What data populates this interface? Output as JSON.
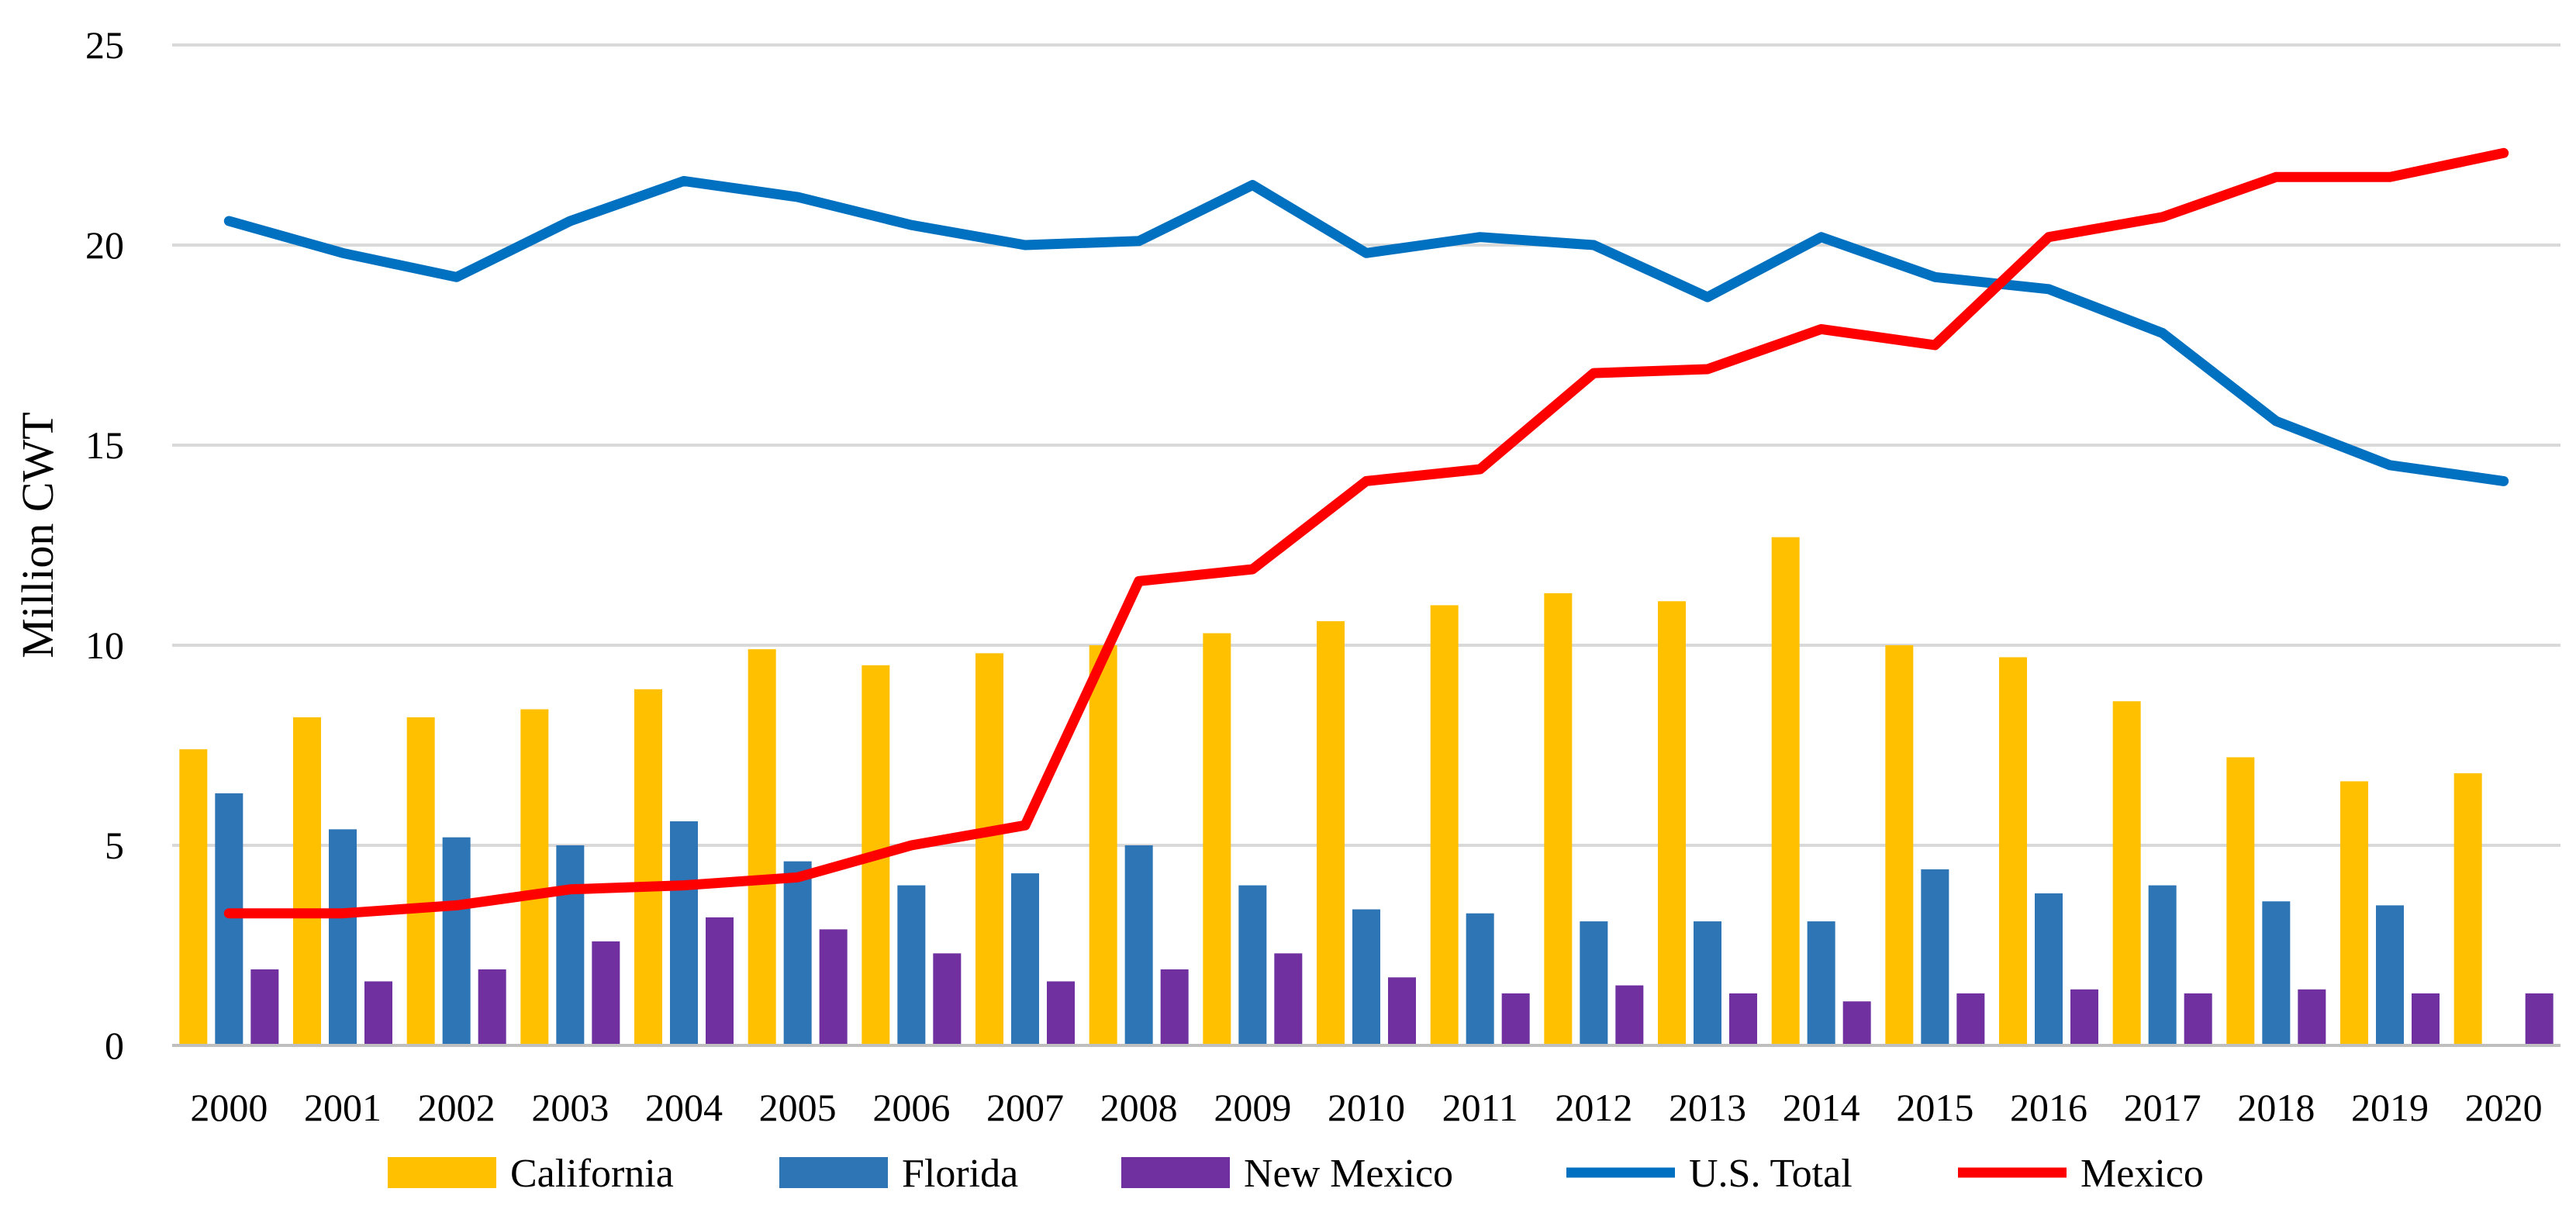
{
  "chart_data": {
    "type": "bar",
    "title": "",
    "xlabel": "",
    "ylabel": "Million CWT",
    "ylim": [
      0,
      25
    ],
    "yticks": [
      0,
      5,
      10,
      15,
      20,
      25
    ],
    "grid": true,
    "legend_position": "bottom",
    "categories": [
      "2000",
      "2001",
      "2002",
      "2003",
      "2004",
      "2005",
      "2006",
      "2007",
      "2008",
      "2009",
      "2010",
      "2011",
      "2012",
      "2013",
      "2014",
      "2015",
      "2016",
      "2017",
      "2018",
      "2019",
      "2020"
    ],
    "series": [
      {
        "name": "California",
        "kind": "bar",
        "color": "#FFC000",
        "values": [
          7.4,
          8.2,
          8.2,
          8.4,
          8.9,
          9.9,
          9.5,
          9.8,
          10.0,
          10.3,
          10.6,
          11.0,
          11.3,
          11.1,
          12.7,
          10.0,
          9.7,
          8.6,
          7.2,
          6.6,
          6.8
        ]
      },
      {
        "name": "Florida",
        "kind": "bar",
        "color": "#2E75B6",
        "values": [
          6.3,
          5.4,
          5.2,
          5.0,
          5.6,
          4.6,
          4.0,
          4.3,
          5.0,
          4.0,
          3.4,
          3.3,
          3.1,
          3.1,
          3.1,
          4.4,
          3.8,
          4.0,
          3.6,
          3.5,
          0
        ]
      },
      {
        "name": "New Mexico",
        "kind": "bar",
        "color": "#7030A0",
        "values": [
          1.9,
          1.6,
          1.9,
          2.6,
          3.2,
          2.9,
          2.3,
          1.6,
          1.9,
          2.3,
          1.7,
          1.3,
          1.5,
          1.3,
          1.1,
          1.3,
          1.4,
          1.3,
          1.4,
          1.3,
          1.3
        ]
      },
      {
        "name": "U.S. Total",
        "kind": "line",
        "color": "#0070C0",
        "values": [
          20.6,
          19.8,
          19.2,
          20.6,
          21.6,
          21.2,
          20.5,
          20.0,
          20.1,
          21.5,
          19.8,
          20.2,
          20.0,
          18.7,
          20.2,
          19.2,
          18.9,
          17.8,
          15.6,
          14.5,
          14.1
        ]
      },
      {
        "name": "Mexico",
        "kind": "line",
        "color": "#FF0000",
        "values": [
          3.3,
          3.3,
          3.5,
          3.9,
          4.0,
          4.2,
          5.0,
          5.5,
          11.6,
          11.9,
          14.1,
          14.4,
          16.8,
          16.9,
          17.9,
          17.5,
          20.2,
          20.7,
          21.7,
          21.7,
          22.3
        ]
      }
    ]
  }
}
